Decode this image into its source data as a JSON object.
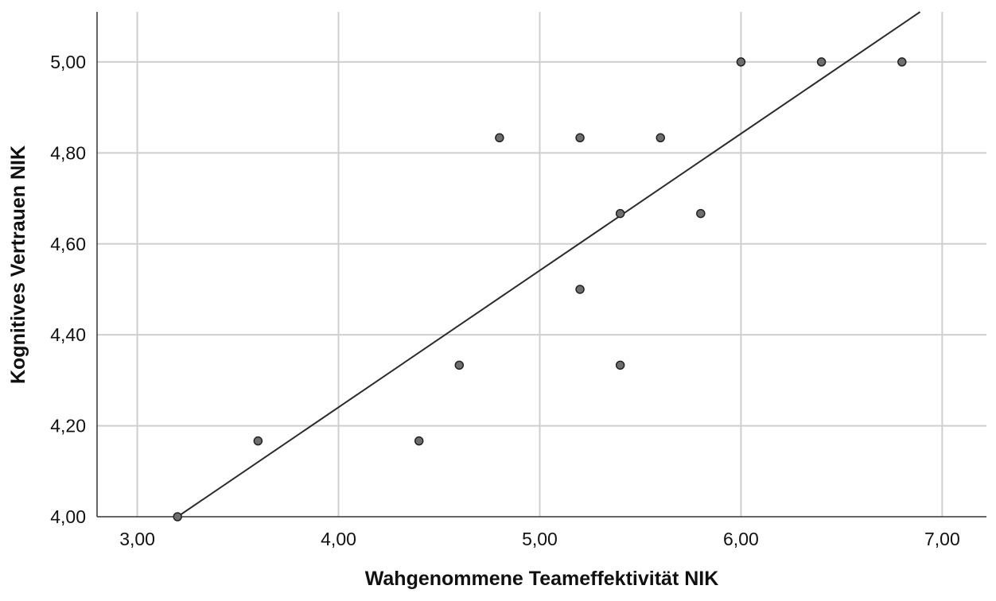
{
  "chart_data": {
    "type": "scatter",
    "xlabel": "Wahgenommene Teameffektivität NIK",
    "ylabel": "Kognitives Vertrauen NIK",
    "xlim": [
      2.8,
      7.22
    ],
    "ylim": [
      4.0,
      5.11
    ],
    "x_ticks": [
      3.0,
      4.0,
      5.0,
      6.0,
      7.0
    ],
    "y_ticks": [
      4.0,
      4.2,
      4.4,
      4.6,
      4.8,
      5.0
    ],
    "x_tick_labels": [
      "3,00",
      "4,00",
      "5,00",
      "6,00",
      "7,00"
    ],
    "y_tick_labels": [
      "4,00",
      "4,20",
      "4,40",
      "4,60",
      "4,80",
      "5,00"
    ],
    "grid": true,
    "points": [
      {
        "x": 3.2,
        "y": 4.0
      },
      {
        "x": 3.6,
        "y": 4.1667
      },
      {
        "x": 4.4,
        "y": 4.1667
      },
      {
        "x": 4.6,
        "y": 4.3333
      },
      {
        "x": 4.8,
        "y": 4.8333
      },
      {
        "x": 5.2,
        "y": 4.8333
      },
      {
        "x": 5.2,
        "y": 4.5
      },
      {
        "x": 5.4,
        "y": 4.6667
      },
      {
        "x": 5.4,
        "y": 4.3333
      },
      {
        "x": 5.6,
        "y": 4.8333
      },
      {
        "x": 5.8,
        "y": 4.6667
      },
      {
        "x": 6.0,
        "y": 5.0
      },
      {
        "x": 6.4,
        "y": 5.0
      },
      {
        "x": 6.8,
        "y": 5.0
      }
    ],
    "fit_line": {
      "x": [
        3.2,
        6.89
      ],
      "y": [
        4.0,
        5.11
      ]
    }
  }
}
